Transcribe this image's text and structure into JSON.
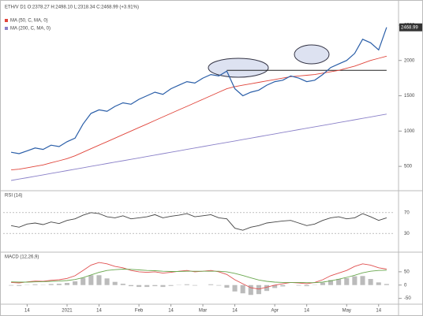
{
  "chart_data": [
    {
      "type": "line",
      "title": "ETH/V D1 O:2378.27 H:2498.10 L:2318.34 C:2468.99 (+3.91%)",
      "xlim": [
        -1,
        48
      ],
      "ylim": [
        200,
        2700
      ],
      "yticks": [
        500,
        1000,
        1500,
        2000,
        2500
      ],
      "price_tag": 2468.99,
      "resistance": {
        "y": 1860,
        "x": [
          27,
          47
        ]
      },
      "series": [
        {
          "name": "MA (50, C, MA, 0)",
          "color": "#e0443a",
          "values": [
            450,
            460,
            480,
            500,
            520,
            550,
            580,
            610,
            650,
            700,
            750,
            800,
            850,
            900,
            950,
            1000,
            1050,
            1100,
            1150,
            1200,
            1250,
            1300,
            1350,
            1400,
            1450,
            1500,
            1550,
            1600,
            1630,
            1650,
            1670,
            1690,
            1710,
            1730,
            1750,
            1770,
            1780,
            1790,
            1800,
            1820,
            1840,
            1860,
            1890,
            1920,
            1960,
            2000,
            2030,
            2060
          ]
        },
        {
          "name": "MA (200, C, MA, 0)",
          "color": "#8a80c8",
          "values": [
            300,
            320,
            340,
            360,
            380,
            400,
            420,
            440,
            460,
            480,
            500,
            520,
            540,
            560,
            580,
            600,
            620,
            640,
            660,
            680,
            700,
            720,
            740,
            760,
            780,
            800,
            820,
            840,
            860,
            880,
            900,
            920,
            940,
            960,
            980,
            1000,
            1020,
            1040,
            1060,
            1080,
            1100,
            1120,
            1140,
            1160,
            1180,
            1200,
            1220,
            1240
          ]
        },
        {
          "name": "ETH/V",
          "color": "#2a5ea8",
          "values": [
            700,
            680,
            720,
            760,
            740,
            800,
            780,
            850,
            900,
            1100,
            1250,
            1300,
            1280,
            1350,
            1400,
            1380,
            1450,
            1500,
            1550,
            1520,
            1600,
            1650,
            1700,
            1680,
            1750,
            1800,
            1780,
            1850,
            1600,
            1500,
            1550,
            1580,
            1650,
            1700,
            1720,
            1780,
            1750,
            1700,
            1720,
            1800,
            1900,
            1950,
            2000,
            2100,
            2300,
            2250,
            2150,
            2468.99
          ]
        }
      ]
    },
    {
      "type": "line",
      "title": "RSI (14)",
      "xlim": [
        -1,
        48
      ],
      "ylim": [
        0,
        100
      ],
      "yticks": [
        30,
        70
      ],
      "series": [
        {
          "name": "RSI",
          "color": "#444444",
          "values": [
            45,
            42,
            48,
            50,
            47,
            52,
            49,
            55,
            58,
            65,
            70,
            68,
            62,
            60,
            64,
            58,
            60,
            62,
            66,
            60,
            63,
            65,
            68,
            62,
            64,
            66,
            60,
            58,
            40,
            36,
            42,
            45,
            50,
            52,
            54,
            55,
            50,
            45,
            48,
            55,
            60,
            62,
            58,
            60,
            68,
            62,
            55,
            60
          ]
        }
      ]
    },
    {
      "type": "line",
      "title": "MACD (12,26,9)",
      "xlim": [
        -1,
        48
      ],
      "ylim": [
        -60,
        100
      ],
      "yticks": [
        -50,
        0,
        50
      ],
      "xticks": [
        {
          "value": 2,
          "label": "14"
        },
        {
          "value": 7,
          "label": "2021"
        },
        {
          "value": 11,
          "label": "14"
        },
        {
          "value": 16,
          "label": "Feb"
        },
        {
          "value": 20,
          "label": "14"
        },
        {
          "value": 24,
          "label": "Mar"
        },
        {
          "value": 28,
          "label": "14"
        },
        {
          "value": 33,
          "label": "Apr"
        },
        {
          "value": 37,
          "label": "14"
        },
        {
          "value": 42,
          "label": "May"
        },
        {
          "value": 46,
          "label": "14"
        }
      ],
      "series": [
        {
          "name": "Histogram",
          "style": "histogram",
          "color": "#bbbbbb",
          "values": [
            -2,
            -3,
            1,
            3,
            1,
            4,
            5,
            8,
            14,
            27,
            37,
            37,
            25,
            12,
            5,
            -4,
            -7,
            -7,
            -4,
            -7,
            -3,
            1,
            3,
            -2,
            0,
            3,
            -2,
            -10,
            -24,
            -31,
            -37,
            -34,
            -22,
            -11,
            -5,
            0,
            -2,
            -4,
            1,
            9,
            19,
            23,
            26,
            33,
            34,
            23,
            10,
            4
          ]
        },
        {
          "name": "MACD",
          "color": "#e05050",
          "values": [
            10,
            8,
            12,
            15,
            14,
            18,
            20,
            25,
            35,
            55,
            75,
            85,
            80,
            70,
            65,
            55,
            50,
            48,
            50,
            45,
            48,
            52,
            55,
            50,
            52,
            55,
            50,
            40,
            20,
            5,
            -10,
            -15,
            -8,
            0,
            5,
            10,
            8,
            5,
            10,
            20,
            35,
            45,
            55,
            70,
            80,
            75,
            65,
            60
          ]
        },
        {
          "name": "Signal",
          "color": "#6aa84f",
          "values": [
            12,
            11,
            11,
            12,
            13,
            14,
            15,
            17,
            21,
            28,
            38,
            48,
            55,
            58,
            60,
            59,
            57,
            55,
            54,
            52,
            51,
            51,
            52,
            52,
            52,
            52,
            52,
            50,
            44,
            36,
            27,
            19,
            14,
            11,
            10,
            10,
            10,
            9,
            9,
            11,
            16,
            22,
            29,
            37,
            46,
            52,
            55,
            56
          ]
        }
      ]
    }
  ]
}
